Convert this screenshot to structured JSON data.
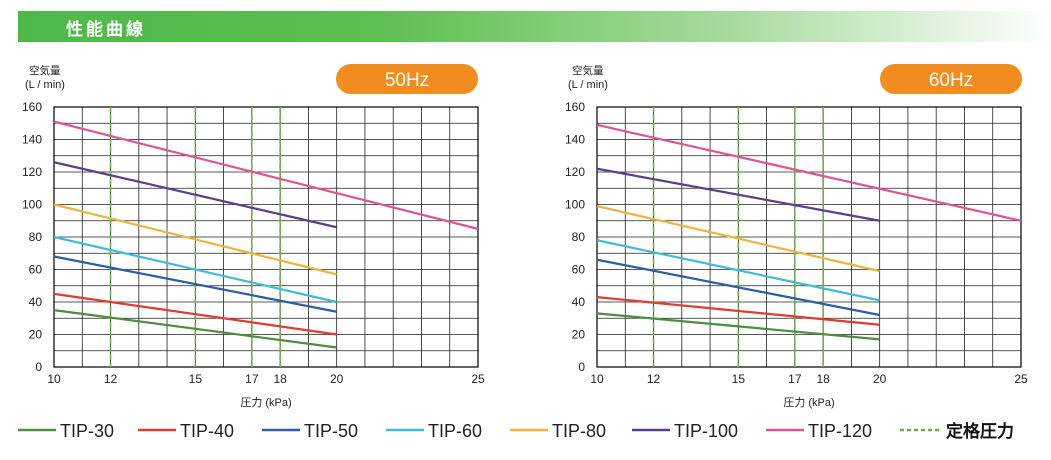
{
  "header": {
    "title": "性能曲線"
  },
  "chart_data": [
    {
      "type": "line",
      "badge": "50Hz",
      "ylabel": [
        "空気量",
        "(L / min)"
      ],
      "xlabel": "圧力 (kPa)",
      "xlim": [
        10,
        25
      ],
      "ylim": [
        0,
        160
      ],
      "x_ticks": [
        10,
        12,
        15,
        17,
        18,
        20,
        25
      ],
      "y_ticks": [
        0,
        20,
        40,
        60,
        80,
        100,
        120,
        140,
        160
      ],
      "rated_pressure": [
        12,
        15,
        17,
        18
      ],
      "series": [
        {
          "name": "TIP-30",
          "x": [
            10,
            20
          ],
          "y": [
            35,
            12
          ]
        },
        {
          "name": "TIP-40",
          "x": [
            10,
            20
          ],
          "y": [
            45,
            20
          ]
        },
        {
          "name": "TIP-50",
          "x": [
            10,
            20
          ],
          "y": [
            68,
            34
          ]
        },
        {
          "name": "TIP-60",
          "x": [
            10,
            20
          ],
          "y": [
            80,
            40
          ]
        },
        {
          "name": "TIP-80",
          "x": [
            10,
            20
          ],
          "y": [
            100,
            57
          ]
        },
        {
          "name": "TIP-100",
          "x": [
            10,
            20
          ],
          "y": [
            126,
            86
          ]
        },
        {
          "name": "TIP-120",
          "x": [
            10,
            25
          ],
          "y": [
            151,
            85
          ]
        }
      ]
    },
    {
      "type": "line",
      "badge": "60Hz",
      "ylabel": [
        "空気量",
        "(L / min)"
      ],
      "xlabel": "圧力 (kPa)",
      "xlim": [
        10,
        25
      ],
      "ylim": [
        0,
        160
      ],
      "x_ticks": [
        10,
        12,
        15,
        17,
        18,
        20,
        25
      ],
      "y_ticks": [
        0,
        20,
        40,
        60,
        80,
        100,
        120,
        140,
        160
      ],
      "rated_pressure": [
        12,
        15,
        17,
        18
      ],
      "series": [
        {
          "name": "TIP-30",
          "x": [
            10,
            20
          ],
          "y": [
            33,
            17
          ]
        },
        {
          "name": "TIP-40",
          "x": [
            10,
            20
          ],
          "y": [
            43,
            26
          ]
        },
        {
          "name": "TIP-50",
          "x": [
            10,
            20
          ],
          "y": [
            66,
            32
          ]
        },
        {
          "name": "TIP-60",
          "x": [
            10,
            20
          ],
          "y": [
            78,
            41
          ]
        },
        {
          "name": "TIP-80",
          "x": [
            10,
            20
          ],
          "y": [
            99,
            59
          ]
        },
        {
          "name": "TIP-100",
          "x": [
            10,
            20
          ],
          "y": [
            122,
            90
          ]
        },
        {
          "name": "TIP-120",
          "x": [
            10,
            25
          ],
          "y": [
            149,
            90
          ]
        }
      ]
    }
  ],
  "legend": {
    "items": [
      {
        "name": "TIP-30",
        "color": "#4a8f3c"
      },
      {
        "name": "TIP-40",
        "color": "#e03c31"
      },
      {
        "name": "TIP-50",
        "color": "#2b5ea7"
      },
      {
        "name": "TIP-60",
        "color": "#3fbcd9"
      },
      {
        "name": "TIP-80",
        "color": "#efb43f"
      },
      {
        "name": "TIP-100",
        "color": "#5b3e8c"
      },
      {
        "name": "TIP-120",
        "color": "#e0548f"
      }
    ],
    "rated_label": "定格圧力",
    "rated_color": "#5fb83c"
  },
  "badge_color": "#f28c1e"
}
